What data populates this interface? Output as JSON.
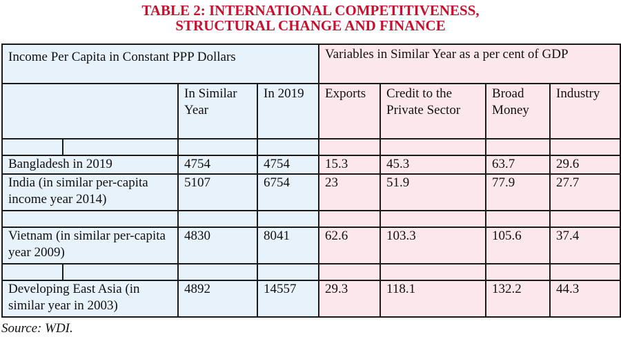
{
  "title": [
    "TABLE 2:  INTERNATIONAL COMPETITIVENESS,",
    "STRUCTURAL CHANGE AND FINANCE"
  ],
  "colors": {
    "title": "#c8102e",
    "income_bg": "#e8f2fb",
    "variables_bg": "#fce8ec"
  },
  "header": {
    "income_group": "Income Per Capita in Constant PPP Dollars",
    "variables_group": "Variables in  Similar Year as a per cent of GDP",
    "columns": [
      "In  Similar Year",
      "In 2019",
      "Exports",
      "Credit to the Private Sector",
      "Broad Money",
      "Industry"
    ]
  },
  "rows": [
    {
      "label": "Bangladesh in 2019",
      "values": [
        "4754",
        "4754",
        "15.3",
        "45.3",
        "63.7",
        "29.6"
      ]
    },
    {
      "label": "India (in similar per-capita income year 2014)",
      "values": [
        "5107",
        "6754",
        "23",
        "51.9",
        "77.9",
        "27.7"
      ]
    },
    {
      "label": "Vietnam (in similar per-capita year 2009)",
      "values": [
        "4830",
        "8041",
        "62.6",
        "103.3",
        "105.6",
        "37.4"
      ]
    },
    {
      "label": "Developing East Asia (in similar year in 2003)",
      "values": [
        "4892",
        "14557",
        "29.3",
        "118.1",
        "132.2",
        "44.3"
      ]
    }
  ],
  "source": "Source: WDI."
}
